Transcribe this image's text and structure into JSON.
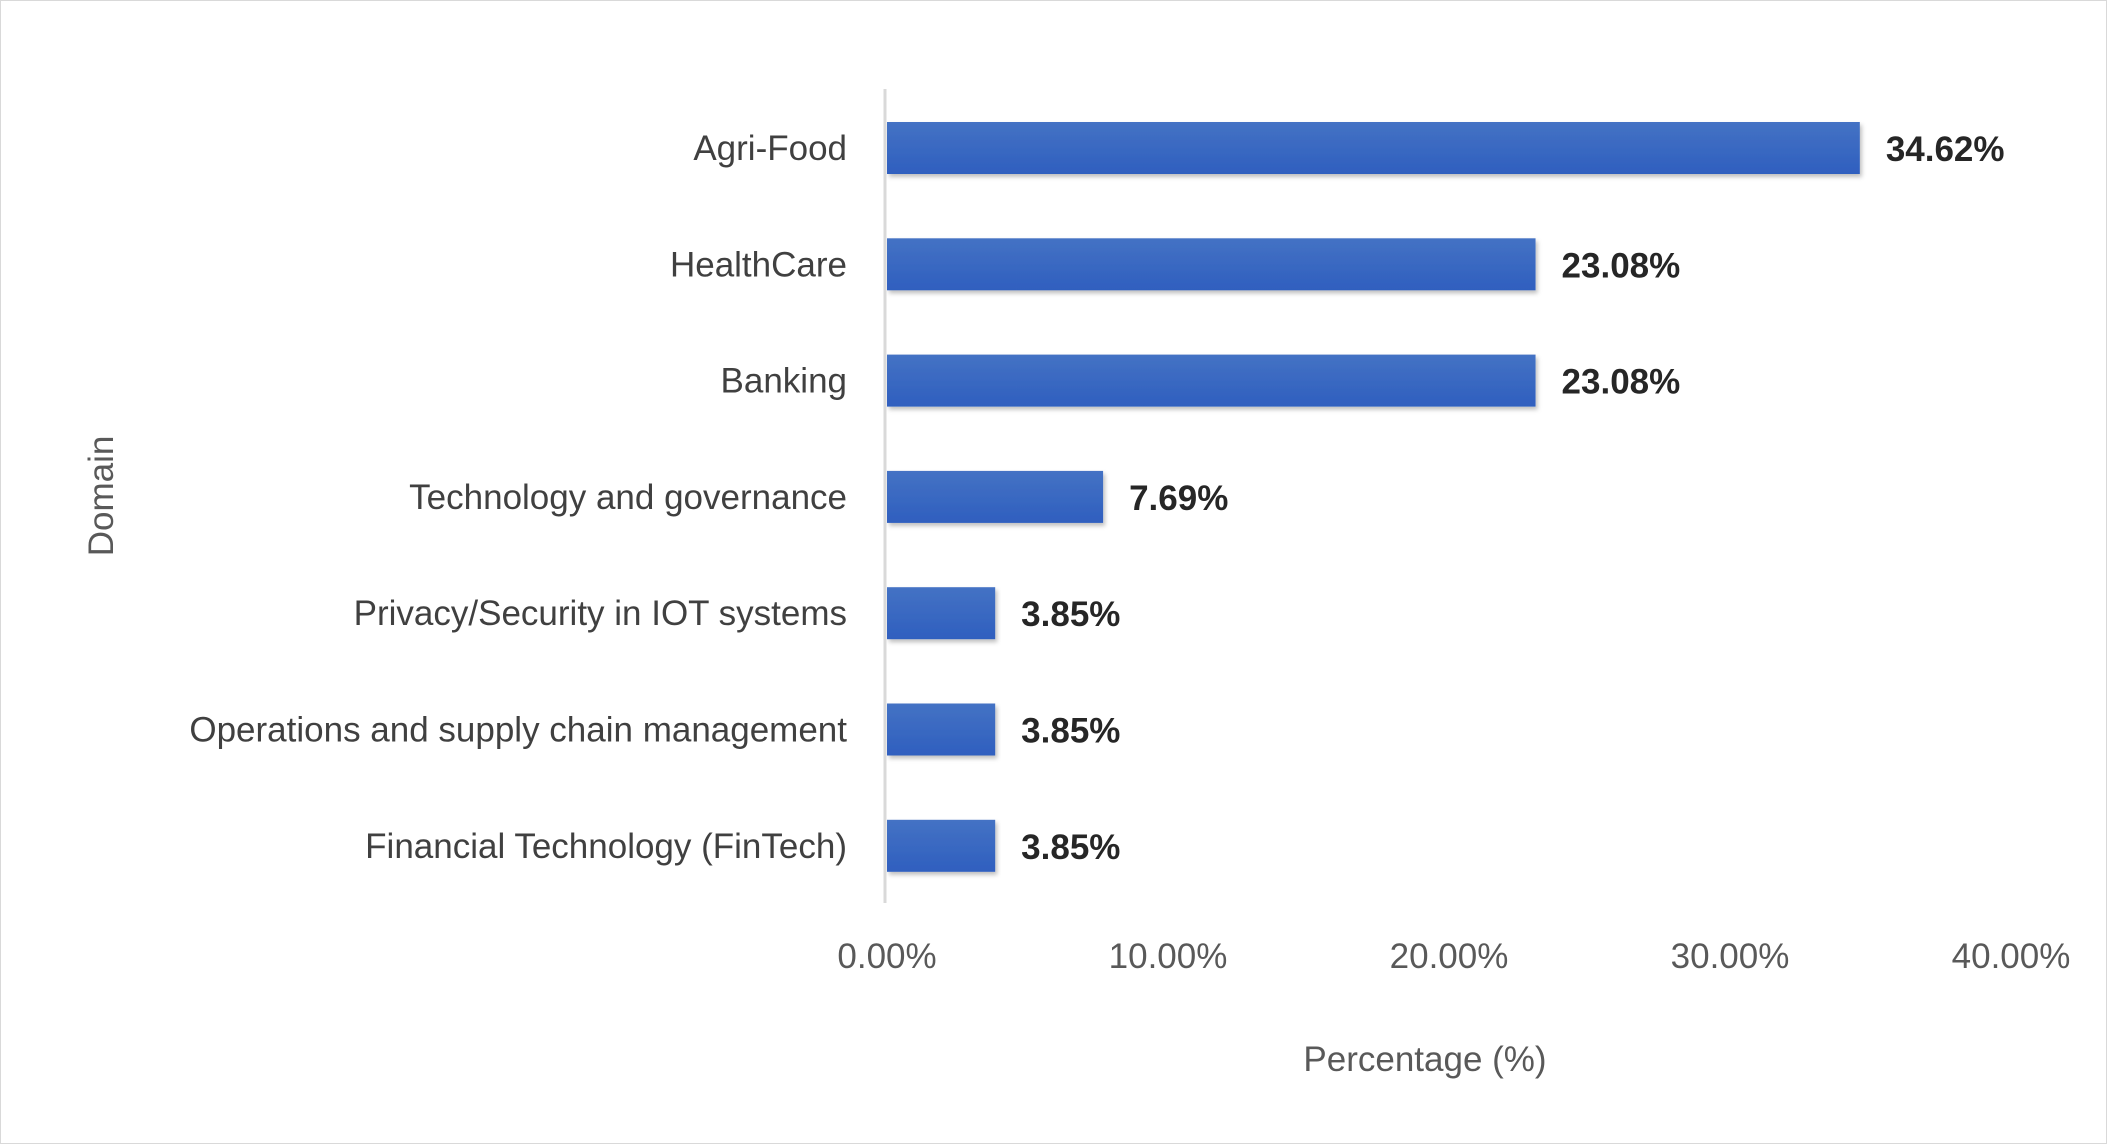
{
  "chart_data": {
    "type": "bar",
    "orientation": "horizontal",
    "categories": [
      "Agri-Food",
      "HealthCare",
      "Banking",
      "Technology and governance",
      "Privacy/Security in IOT systems",
      "Operations and supply chain management",
      "Financial Technology (FinTech)"
    ],
    "values": [
      34.62,
      23.08,
      23.08,
      7.69,
      3.85,
      3.85,
      3.85
    ],
    "value_labels": [
      "34.62%",
      "23.08%",
      "23.08%",
      "7.69%",
      "3.85%",
      "3.85%",
      "3.85%"
    ],
    "xlabel": "Percentage (%)",
    "ylabel": "Domain",
    "xlim": [
      0,
      40
    ],
    "xticks": [
      0,
      10,
      20,
      30,
      40
    ],
    "xtick_labels": [
      "0.00%",
      "10.00%",
      "20.00%",
      "30.00%",
      "40.00%"
    ],
    "grid": false,
    "bar_color": "#4472c4",
    "bar_color_dark": "#2f5fbf"
  }
}
